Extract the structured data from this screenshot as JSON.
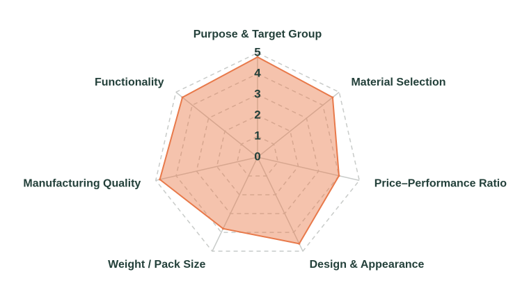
{
  "chart_data": {
    "type": "radar",
    "categories": [
      "Purpose & Target Group",
      "Material Selection",
      "Price–Performance Ratio",
      "Design & Appearance",
      "Weight / Pack Size",
      "Manufacturing Quality",
      "Functionality"
    ],
    "values": [
      4.8,
      4.6,
      4.0,
      4.6,
      3.8,
      4.8,
      4.6
    ],
    "color": "#e8794a",
    "ylim": [
      0,
      5
    ],
    "yticks": [
      0,
      1,
      2,
      3,
      4,
      5
    ],
    "grid": true
  }
}
